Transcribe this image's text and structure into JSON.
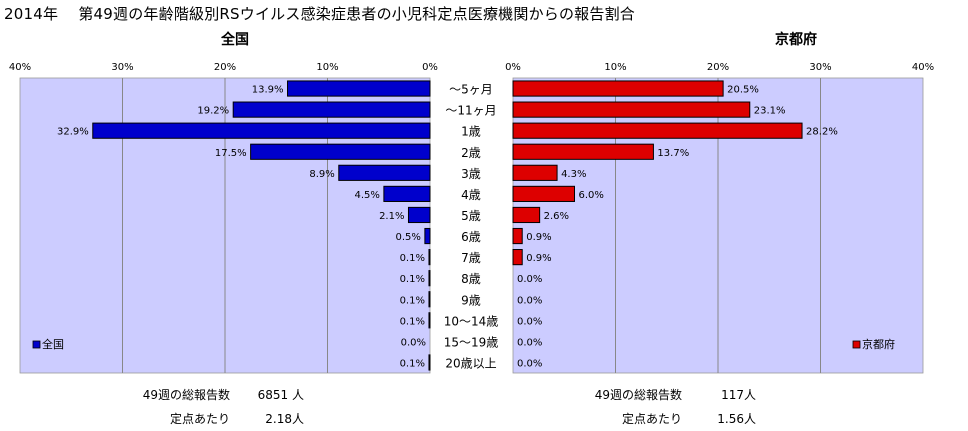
{
  "title": "2014年　 第49週の年齢階級別RSウイルス感染症患者の小児科定点医療機関からの報告割合",
  "colors": {
    "plot_bg": "#ccccff",
    "national_bar": "#0000cc",
    "kyoto_bar": "#dd0000",
    "grid": "#888888"
  },
  "chart_data": [
    {
      "type": "bar",
      "orientation": "horizontal",
      "direction": "right-to-left",
      "title": "全国",
      "legend": "全国",
      "legend_position": "bottom-left",
      "grid": true,
      "xlim": [
        0,
        40
      ],
      "ticks": [
        "40%",
        "30%",
        "20%",
        "10%",
        "0%"
      ],
      "categories": [
        "～5ヶ月",
        "～11ヶ月",
        "1歳",
        "2歳",
        "3歳",
        "4歳",
        "5歳",
        "6歳",
        "7歳",
        "8歳",
        "9歳",
        "10～14歳",
        "15～19歳",
        "20歳以上"
      ],
      "values": [
        13.9,
        19.2,
        32.9,
        17.5,
        8.9,
        4.5,
        2.1,
        0.5,
        0.1,
        0.1,
        0.1,
        0.1,
        0.0,
        0.1
      ],
      "labels": [
        "13.9%",
        "19.2%",
        "32.9%",
        "17.5%",
        "8.9%",
        "4.5%",
        "2.1%",
        "0.5%",
        "0.1%",
        "0.1%",
        "0.1%",
        "0.1%",
        "0.0%",
        "0.1%"
      ]
    },
    {
      "type": "bar",
      "orientation": "horizontal",
      "direction": "left-to-right",
      "title": "京都府",
      "legend": "京都府",
      "legend_position": "bottom-right",
      "grid": true,
      "xlim": [
        0,
        40
      ],
      "ticks": [
        "0%",
        "10%",
        "20%",
        "30%",
        "40%"
      ],
      "categories": [
        "～5ヶ月",
        "～11ヶ月",
        "1歳",
        "2歳",
        "3歳",
        "4歳",
        "5歳",
        "6歳",
        "7歳",
        "8歳",
        "9歳",
        "10～14歳",
        "15～19歳",
        "20歳以上"
      ],
      "values": [
        20.5,
        23.1,
        28.2,
        13.7,
        4.3,
        6.0,
        2.6,
        0.9,
        0.9,
        0.0,
        0.0,
        0.0,
        0.0,
        0.0
      ],
      "labels": [
        "20.5%",
        "23.1%",
        "28.2%",
        "13.7%",
        "4.3%",
        "6.0%",
        "2.6%",
        "0.9%",
        "0.9%",
        "0.0%",
        "0.0%",
        "0.0%",
        "0.0%",
        "0.0%"
      ]
    }
  ],
  "stats": {
    "national": {
      "total_label": "49週の総報告数",
      "total_value": "6851 人",
      "per_label": "定点あたり",
      "per_value": "2.18人"
    },
    "kyoto": {
      "total_label": "49週の総報告数",
      "total_value": "117人",
      "per_label": "定点あたり",
      "per_value": "1.56人"
    }
  }
}
